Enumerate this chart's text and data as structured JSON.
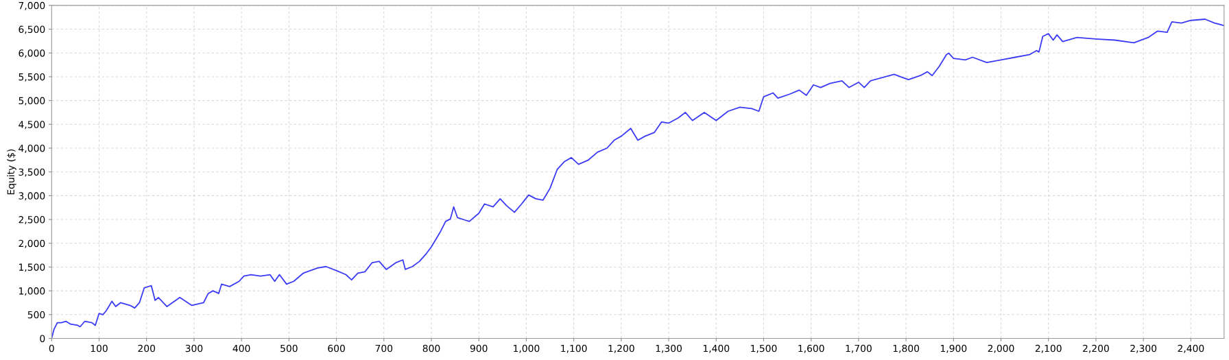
{
  "chart_data": {
    "type": "line",
    "ylabel": "Equity ($)",
    "xlim": [
      0,
      2470
    ],
    "xticks": [
      0,
      {
        "value": 100,
        "label": "100"
      },
      {
        "value": 200,
        "label": "200"
      },
      {
        "value": 300,
        "label": "300"
      },
      {
        "value": 400,
        "label": "400"
      },
      {
        "value": 500,
        "label": "500"
      },
      {
        "value": 600,
        "label": "600"
      },
      {
        "value": 700,
        "label": "700"
      },
      {
        "value": 800,
        "label": "800"
      },
      {
        "value": 900,
        "label": "900"
      },
      {
        "value": 1000,
        "label": "1,000"
      },
      {
        "value": 1100,
        "label": "1,100"
      },
      {
        "value": 1200,
        "label": "1,200"
      },
      {
        "value": 1300,
        "label": "1,300"
      },
      {
        "value": 1400,
        "label": "1,400"
      },
      {
        "value": 1500,
        "label": "1,500"
      },
      {
        "value": 1600,
        "label": "1,600"
      },
      {
        "value": 1700,
        "label": "1,700"
      },
      {
        "value": 1800,
        "label": "1,800"
      },
      {
        "value": 1900,
        "label": "1,900"
      },
      {
        "value": 2000,
        "label": "2,000"
      },
      {
        "value": 2100,
        "label": "2,100"
      },
      {
        "value": 2200,
        "label": "2,200"
      },
      {
        "value": 2300,
        "label": "2,300"
      },
      {
        "value": 2400,
        "label": "2,400"
      }
    ],
    "ylim": [
      0,
      7000
    ],
    "yticks": [
      0,
      500,
      {
        "value": 1000,
        "label": "1,000"
      },
      {
        "value": 1500,
        "label": "1,500"
      },
      {
        "value": 2000,
        "label": "2,000"
      },
      {
        "value": 2500,
        "label": "2,500"
      },
      {
        "value": 3000,
        "label": "3,000"
      },
      {
        "value": 3500,
        "label": "3,500"
      },
      {
        "value": 4000,
        "label": "4,000"
      },
      {
        "value": 4500,
        "label": "4,500"
      },
      {
        "value": 5000,
        "label": "5,000"
      },
      {
        "value": 5500,
        "label": "5,500"
      },
      {
        "value": 6000,
        "label": "6,000"
      },
      {
        "value": 6500,
        "label": "6,500"
      },
      {
        "value": 7000,
        "label": "7,000"
      }
    ],
    "grid": true,
    "line_style": "solid",
    "marker": "none",
    "series": [
      {
        "color": "#3b3bf5",
        "x": [
          0,
          5,
          12,
          20,
          30,
          40,
          55,
          60,
          70,
          85,
          92,
          100,
          108,
          115,
          127,
          135,
          145,
          165,
          175,
          185,
          195,
          210,
          218,
          225,
          243,
          270,
          295,
          320,
          330,
          340,
          352,
          358,
          375,
          395,
          405,
          420,
          440,
          460,
          470,
          480,
          495,
          510,
          530,
          560,
          578,
          600,
          620,
          632,
          645,
          660,
          675,
          690,
          705,
          725,
          740,
          745,
          760,
          775,
          790,
          800,
          810,
          820,
          830,
          840,
          847,
          855,
          870,
          880,
          900,
          912,
          930,
          945,
          958,
          975,
          990,
          1005,
          1020,
          1035,
          1050,
          1065,
          1080,
          1095,
          1110,
          1130,
          1150,
          1170,
          1185,
          1200,
          1220,
          1235,
          1250,
          1270,
          1285,
          1300,
          1320,
          1335,
          1350,
          1375,
          1400,
          1425,
          1450,
          1475,
          1490,
          1500,
          1520,
          1530,
          1555,
          1575,
          1590,
          1605,
          1620,
          1640,
          1665,
          1680,
          1700,
          1712,
          1725,
          1775,
          1790,
          1805,
          1830,
          1845,
          1855,
          1870,
          1885,
          1890,
          1900,
          1925,
          1940,
          1970,
          2000,
          2030,
          2060,
          2075,
          2080,
          2088,
          2100,
          2110,
          2118,
          2130,
          2160,
          2200,
          2240,
          2280,
          2310,
          2330,
          2350,
          2360,
          2380,
          2400,
          2430,
          2450,
          2470
        ],
        "values": [
          0,
          190,
          330,
          330,
          360,
          300,
          275,
          245,
          360,
          330,
          275,
          525,
          500,
          580,
          780,
          670,
          750,
          695,
          640,
          750,
          1060,
          1110,
          800,
          860,
          670,
          860,
          695,
          750,
          945,
          1000,
          945,
          1140,
          1090,
          1200,
          1310,
          1340,
          1310,
          1340,
          1200,
          1340,
          1140,
          1200,
          1370,
          1480,
          1510,
          1425,
          1340,
          1230,
          1370,
          1400,
          1590,
          1620,
          1450,
          1590,
          1650,
          1450,
          1510,
          1620,
          1790,
          1925,
          2090,
          2260,
          2460,
          2510,
          2765,
          2540,
          2490,
          2460,
          2630,
          2825,
          2765,
          2935,
          2795,
          2650,
          2825,
          3015,
          2935,
          2905,
          3155,
          3550,
          3715,
          3800,
          3660,
          3745,
          3915,
          4000,
          4165,
          4250,
          4415,
          4165,
          4250,
          4330,
          4550,
          4525,
          4635,
          4750,
          4580,
          4750,
          4580,
          4775,
          4860,
          4830,
          4775,
          5080,
          5160,
          5050,
          5135,
          5220,
          5110,
          5330,
          5275,
          5360,
          5415,
          5275,
          5385,
          5275,
          5415,
          5550,
          5495,
          5440,
          5525,
          5605,
          5525,
          5720,
          5965,
          5995,
          5885,
          5855,
          5910,
          5800,
          5855,
          5910,
          5965,
          6050,
          6020,
          6350,
          6405,
          6270,
          6380,
          6240,
          6325,
          6295,
          6270,
          6215,
          6325,
          6460,
          6435,
          6655,
          6630,
          6685,
          6710,
          6630,
          6575
        ]
      }
    ]
  }
}
